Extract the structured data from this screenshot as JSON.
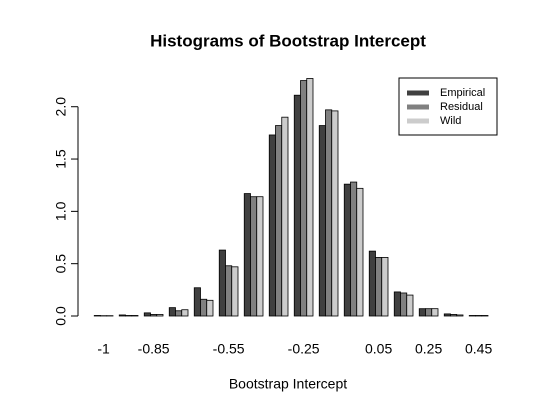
{
  "chart_data": {
    "type": "bar",
    "title": "Histograms of Bootstrap Intercept",
    "x_label": "Bootstrap Intercept",
    "categories": [
      "-1",
      null,
      "-0.85",
      null,
      null,
      "-0.55",
      null,
      null,
      "-0.25",
      null,
      null,
      "0.05",
      null,
      "0.25",
      null,
      "0.45"
    ],
    "series": [
      {
        "name": "Empirical",
        "color": "#404040",
        "values": [
          0.005,
          0.01,
          0.03,
          0.08,
          0.27,
          0.63,
          1.17,
          1.73,
          2.11,
          1.82,
          1.26,
          0.62,
          0.23,
          0.07,
          0.02,
          0.005
        ]
      },
      {
        "name": "Residual",
        "color": "#808080",
        "values": [
          0.003,
          0.005,
          0.015,
          0.05,
          0.16,
          0.48,
          1.14,
          1.82,
          2.25,
          1.97,
          1.28,
          0.56,
          0.22,
          0.07,
          0.015,
          0.005
        ]
      },
      {
        "name": "Wild",
        "color": "#cccccc",
        "values": [
          0.003,
          0.005,
          0.015,
          0.06,
          0.15,
          0.47,
          1.14,
          1.9,
          2.27,
          1.96,
          1.22,
          0.56,
          0.2,
          0.07,
          0.01,
          0.005
        ]
      }
    ],
    "ylim": [
      0,
      2.37
    ],
    "yticks": [
      {
        "value": 0,
        "label": "0.0"
      },
      {
        "value": 0.5,
        "label": "0.5"
      },
      {
        "value": 1,
        "label": "1.0"
      },
      {
        "value": 1.5,
        "label": "1.5"
      },
      {
        "value": 2,
        "label": "2.0"
      }
    ],
    "legend": "top-right"
  }
}
